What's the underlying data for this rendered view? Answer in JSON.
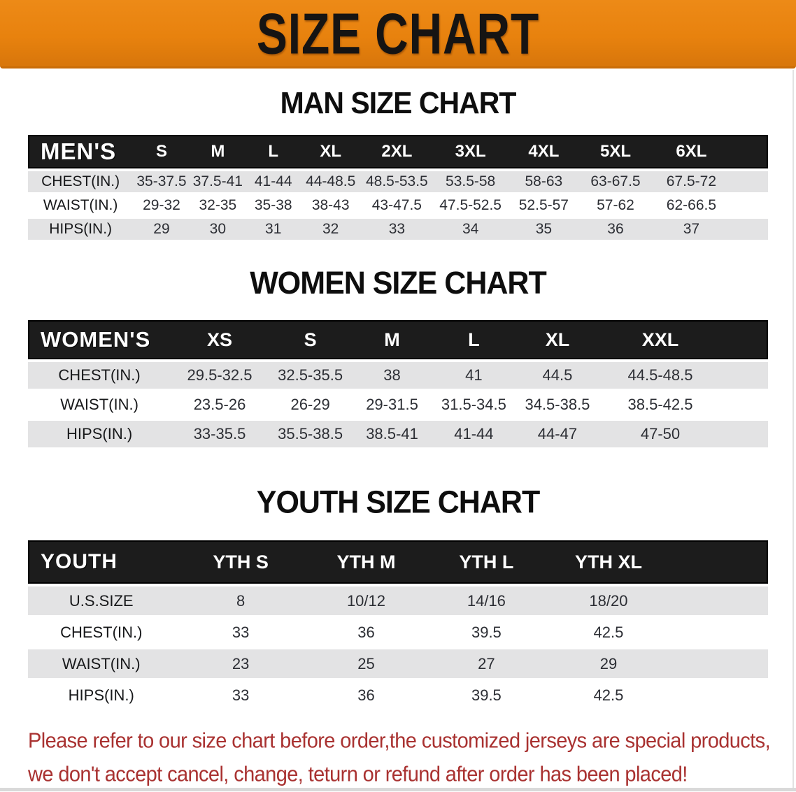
{
  "banner": {
    "title": "SIZE CHART"
  },
  "colors": {
    "banner_bg": "#E8820E",
    "header_bar": "#1C1C1C",
    "row_stripe": "#E3E3E4",
    "disclaimer_red": "#A93231"
  },
  "sections": [
    {
      "id": "men",
      "heading": "MAN SIZE CHART",
      "table": {
        "header_label": "MEN'S",
        "columns": [
          "S",
          "M",
          "L",
          "XL",
          "2XL",
          "3XL",
          "4XL",
          "5XL",
          "6XL"
        ],
        "rows": [
          {
            "label": "CHEST(IN.)",
            "values": [
              "35-37.5",
              "37.5-41",
              "41-44",
              "44-48.5",
              "48.5-53.5",
              "53.5-58",
              "58-63",
              "63-67.5",
              "67.5-72"
            ]
          },
          {
            "label": "WAIST(IN.)",
            "values": [
              "29-32",
              "32-35",
              "35-38",
              "38-43",
              "43-47.5",
              "47.5-52.5",
              "52.5-57",
              "57-62",
              "62-66.5"
            ]
          },
          {
            "label": "HIPS(IN.)",
            "values": [
              "29",
              "30",
              "31",
              "32",
              "33",
              "34",
              "35",
              "36",
              "37"
            ]
          }
        ]
      }
    },
    {
      "id": "women",
      "heading": "WOMEN SIZE CHART",
      "table": {
        "header_label": "WOMEN'S",
        "columns": [
          "XS",
          "S",
          "M",
          "L",
          "XL",
          "XXL"
        ],
        "rows": [
          {
            "label": "CHEST(IN.)",
            "values": [
              "29.5-32.5",
              "32.5-35.5",
              "38",
              "41",
              "44.5",
              "44.5-48.5"
            ]
          },
          {
            "label": "WAIST(IN.)",
            "values": [
              "23.5-26",
              "26-29",
              "29-31.5",
              "31.5-34.5",
              "34.5-38.5",
              "38.5-42.5"
            ]
          },
          {
            "label": "HIPS(IN.)",
            "values": [
              "33-35.5",
              "35.5-38.5",
              "38.5-41",
              "41-44",
              "44-47",
              "47-50"
            ]
          }
        ]
      }
    },
    {
      "id": "youth",
      "heading": "YOUTH SIZE CHART",
      "table": {
        "header_label": "YOUTH",
        "columns": [
          "YTH S",
          "YTH M",
          "YTH L",
          "YTH XL"
        ],
        "rows": [
          {
            "label": "U.S.SIZE",
            "values": [
              "8",
              "10/12",
              "14/16",
              "18/20"
            ]
          },
          {
            "label": "CHEST(IN.)",
            "values": [
              "33",
              "36",
              "39.5",
              "42.5"
            ]
          },
          {
            "label": "WAIST(IN.)",
            "values": [
              "23",
              "25",
              "27",
              "29"
            ]
          },
          {
            "label": "HIPS(IN.)",
            "values": [
              "33",
              "36",
              "39.5",
              "42.5"
            ]
          }
        ]
      }
    }
  ],
  "disclaimer": {
    "line1": "Please refer to our size chart before order,the customized jerseys are special products,",
    "line2": "we don't accept cancel, change, teturn or refund after order has been placed!"
  }
}
